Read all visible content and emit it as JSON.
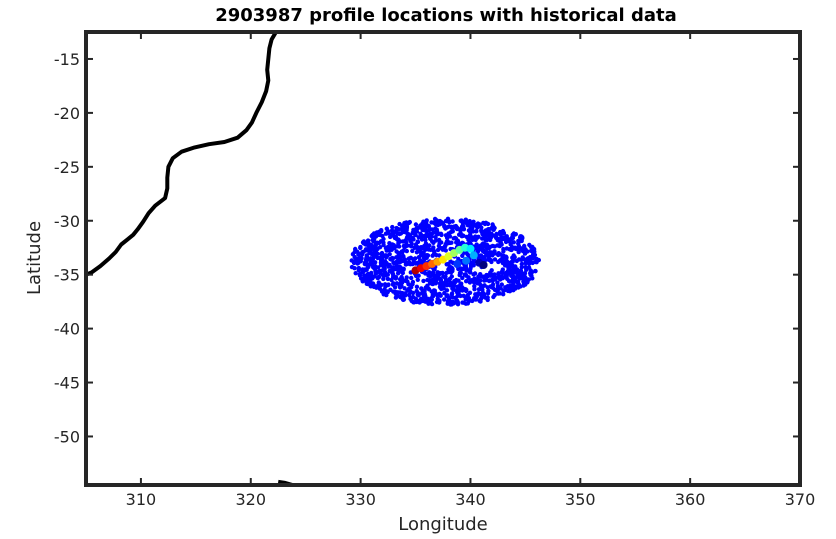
{
  "chart_data": {
    "type": "scatter",
    "title": "2903987 profile locations with historical data",
    "xlabel": "Longitude",
    "ylabel": "Latitude",
    "xlim": [
      305,
      370
    ],
    "ylim": [
      -54.5,
      -12.5
    ],
    "xticks": [
      310,
      320,
      330,
      340,
      350,
      360,
      370
    ],
    "yticks": [
      -15,
      -20,
      -25,
      -30,
      -35,
      -40,
      -45,
      -50
    ],
    "grid": false,
    "legend": "none",
    "coastline": {
      "color": "#000000",
      "coast_points": [
        [
          322.3,
          -12.5
        ],
        [
          321.9,
          -13.2
        ],
        [
          321.7,
          -14.0
        ],
        [
          321.6,
          -15.0
        ],
        [
          321.5,
          -16.0
        ],
        [
          321.6,
          -17.0
        ],
        [
          321.4,
          -18.0
        ],
        [
          321.0,
          -19.0
        ],
        [
          320.5,
          -20.0
        ],
        [
          320.1,
          -20.9
        ],
        [
          319.6,
          -21.6
        ],
        [
          318.8,
          -22.3
        ],
        [
          317.6,
          -22.7
        ],
        [
          316.2,
          -22.9
        ],
        [
          314.9,
          -23.2
        ],
        [
          313.7,
          -23.6
        ],
        [
          312.9,
          -24.2
        ],
        [
          312.5,
          -25.0
        ],
        [
          312.4,
          -26.0
        ],
        [
          312.4,
          -27.0
        ],
        [
          312.2,
          -27.9
        ],
        [
          311.3,
          -28.6
        ],
        [
          310.7,
          -29.3
        ],
        [
          310.2,
          -30.1
        ],
        [
          309.7,
          -30.8
        ],
        [
          309.3,
          -31.3
        ],
        [
          308.7,
          -31.8
        ],
        [
          308.2,
          -32.2
        ],
        [
          307.7,
          -32.9
        ],
        [
          307.1,
          -33.5
        ],
        [
          306.3,
          -34.2
        ],
        [
          305.5,
          -34.8
        ],
        [
          305.0,
          -35.0
        ]
      ],
      "southern_island": [
        [
          322.5,
          -54.2
        ],
        [
          323.1,
          -54.3
        ],
        [
          323.8,
          -54.5
        ]
      ]
    },
    "series": [
      {
        "description": "historical profiles",
        "color": "#0000ff",
        "center": [
          337.7,
          -33.8
        ],
        "radius_lon": 8.6,
        "radius_lat": 4.0,
        "count": 1400
      },
      {
        "description": "float profiles",
        "colormap": "jet",
        "points": [
          [
            335.0,
            -34.6
          ],
          [
            335.5,
            -34.4
          ],
          [
            336.0,
            -34.2
          ],
          [
            336.5,
            -34.0
          ],
          [
            337.0,
            -33.8
          ],
          [
            337.5,
            -33.6
          ],
          [
            338.0,
            -33.3
          ],
          [
            338.5,
            -33.0
          ],
          [
            339.0,
            -32.7
          ],
          [
            339.5,
            -32.5
          ],
          [
            340.0,
            -32.6
          ],
          [
            340.3,
            -33.2
          ],
          [
            339.6,
            -33.7
          ],
          [
            338.8,
            -34.0
          ],
          [
            338.2,
            -34.5
          ],
          [
            340.8,
            -33.9
          ],
          [
            341.2,
            -34.1
          ]
        ]
      }
    ]
  }
}
